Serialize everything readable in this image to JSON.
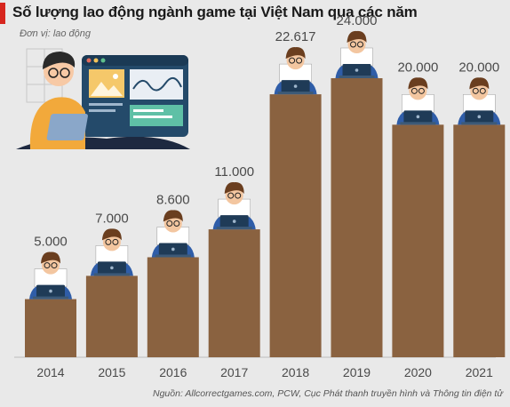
{
  "header": {
    "title": "Số lượng lao động ngành game tại Việt Nam qua các năm",
    "unit": "Đơn vị: lao động"
  },
  "source": "Nguồn: Allcorrectgames.com, PCW, Cục Phát thanh truyền hình và Thông tin điện tử",
  "colors": {
    "bar": "#8a6240",
    "accent": "#d7261e",
    "background": "#e9e9e9",
    "person_shirt": "#2f5da8",
    "person_hair": "#6a3e1f",
    "laptop": "#1f3b57"
  },
  "chart_data": {
    "type": "bar",
    "categories": [
      "2014",
      "2015",
      "2016",
      "2017",
      "2018",
      "2019",
      "2020",
      "2021"
    ],
    "value_labels": [
      "5.000",
      "7.000",
      "8.600",
      "11.000",
      "22.617",
      "24.000",
      "20.000",
      "20.000"
    ],
    "values": [
      5000,
      7000,
      8600,
      11000,
      22617,
      24000,
      20000,
      20000
    ],
    "title": "Số lượng lao động ngành game tại Việt Nam qua các năm",
    "xlabel": "",
    "ylabel": "",
    "ylim": [
      0,
      24000
    ],
    "grid": false,
    "legend": "none"
  }
}
